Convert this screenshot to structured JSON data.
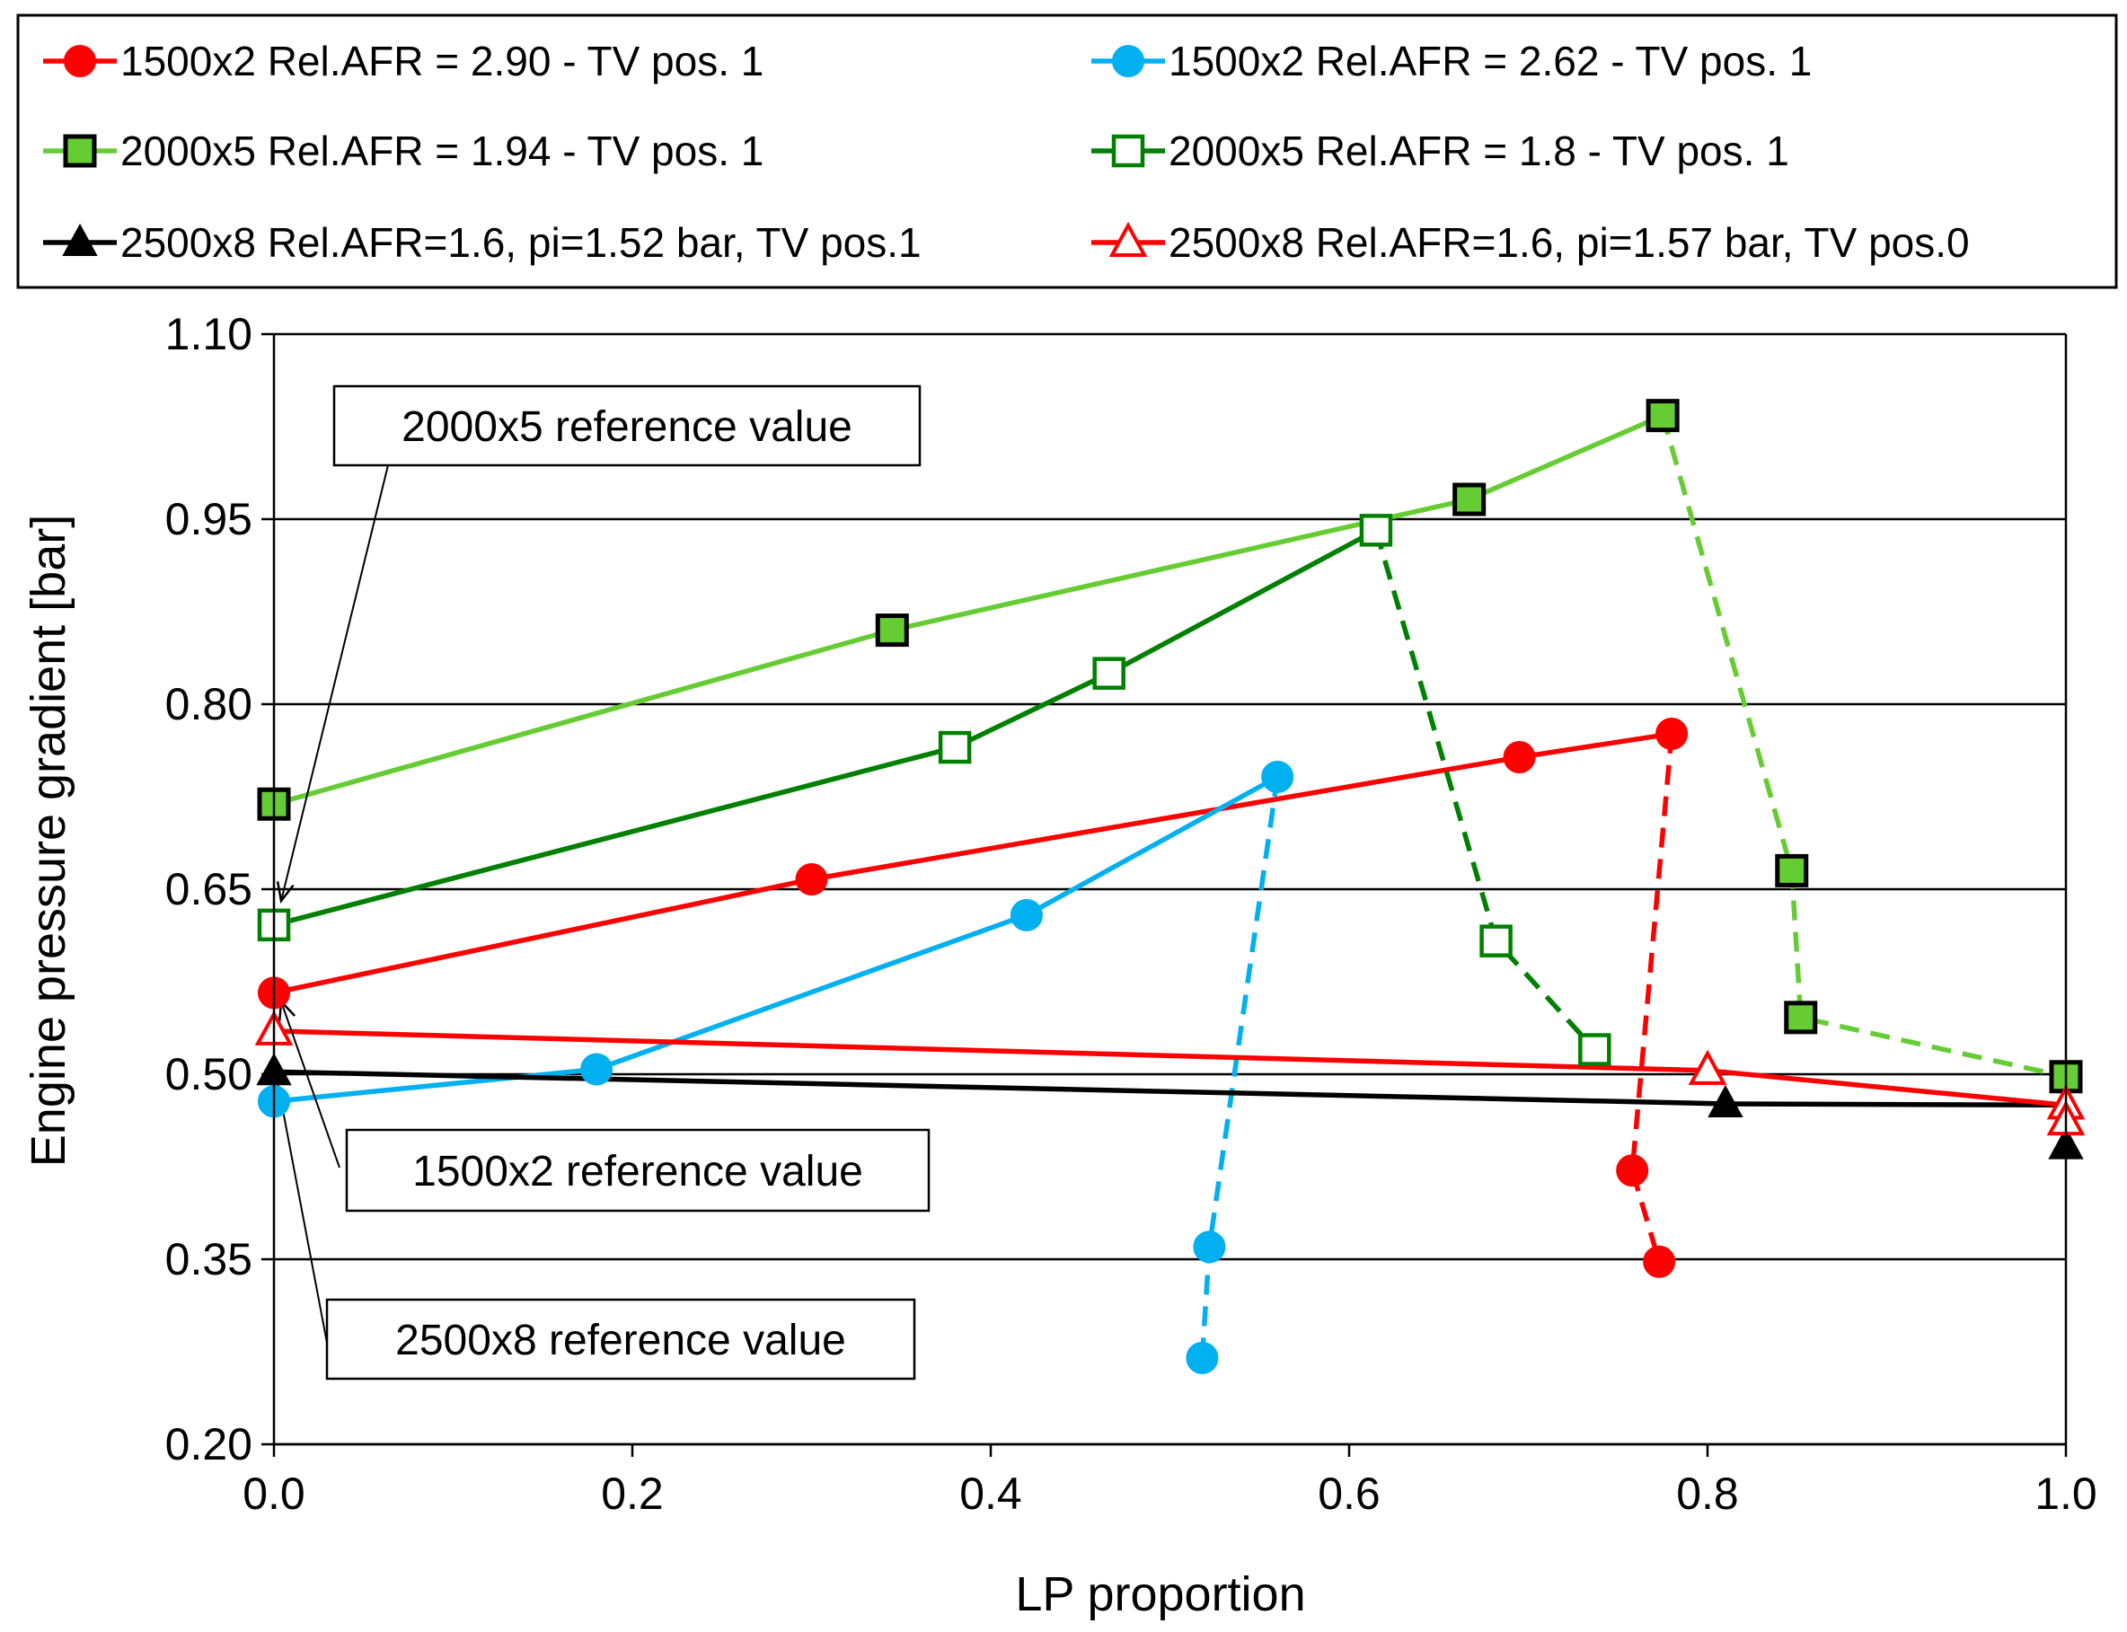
{
  "chart_data": {
    "type": "line",
    "xlabel": "LP proportion",
    "ylabel": "Engine pressure gradient [bar]",
    "xlim": [
      0.0,
      1.0
    ],
    "ylim": [
      0.2,
      1.1
    ],
    "x_ticks": [
      "0.0",
      "0.2",
      "0.4",
      "0.6",
      "0.8",
      "1.0"
    ],
    "y_ticks": [
      "0.20",
      "0.35",
      "0.50",
      "0.65",
      "0.80",
      "0.95",
      "1.10"
    ],
    "grid": "horizontal",
    "legend_position": "top",
    "series": [
      {
        "name": "1500x2 Rel.AFR = 2.90 - TV pos. 1",
        "color": "#ff0000",
        "marker": "circle",
        "x": [
          0.0,
          0.3,
          0.695,
          0.78,
          0.758,
          0.773
        ],
        "y": [
          0.566,
          0.658,
          0.757,
          0.776,
          0.422,
          0.348
        ],
        "dashed_from_index": 3
      },
      {
        "name": "1500x2 Rel.AFR = 2.62 - TV pos. 1",
        "color": "#00b0f0",
        "marker": "circle",
        "x": [
          0.0,
          0.18,
          0.42,
          0.56,
          0.522,
          0.518
        ],
        "y": [
          0.478,
          0.504,
          0.629,
          0.741,
          0.36,
          0.27
        ],
        "dashed_from_index": 3
      },
      {
        "name": "2000x5 Rel.AFR = 1.94 - TV pos. 1",
        "color": "#66cc33",
        "marker": "square-filled",
        "x": [
          0.0,
          0.345,
          0.667,
          0.775,
          0.847,
          0.852,
          1.0
        ],
        "y": [
          0.719,
          0.86,
          0.966,
          1.034,
          0.665,
          0.546,
          0.498
        ],
        "dashed_from_index": 3
      },
      {
        "name": "2000x5 Rel.AFR = 1.8 - TV pos. 1",
        "color": "#008000",
        "marker": "square-open",
        "x": [
          0.0,
          0.38,
          0.466,
          0.615,
          0.682,
          0.737
        ],
        "y": [
          0.621,
          0.765,
          0.825,
          0.941,
          0.608,
          0.52
        ],
        "dashed_from_index": 3
      },
      {
        "name": "2500x8 Rel.AFR=1.6, pi=1.52 bar, TV pos.1",
        "color": "#000000",
        "marker": "triangle-filled",
        "x": [
          0.0,
          0.81,
          1.0,
          1.0
        ],
        "y": [
          0.502,
          0.476,
          0.475,
          0.442
        ],
        "dashed_from_index": null
      },
      {
        "name": "2500x8 Rel.AFR=1.6, pi=1.57 bar, TV pos.0",
        "color": "#ff0000",
        "marker": "triangle-open",
        "x": [
          0.0,
          0.8,
          1.0,
          1.0
        ],
        "y": [
          0.535,
          0.503,
          0.475,
          0.462
        ],
        "dashed_from_index": null
      }
    ],
    "annotations": [
      {
        "text": "2000x5 reference value",
        "points_to": [
          0.0,
          0.621
        ]
      },
      {
        "text": "1500x2 reference value",
        "points_to": [
          0.0,
          0.566
        ]
      },
      {
        "text": "2500x8 reference value",
        "points_to": [
          0.0,
          0.478
        ]
      }
    ]
  }
}
